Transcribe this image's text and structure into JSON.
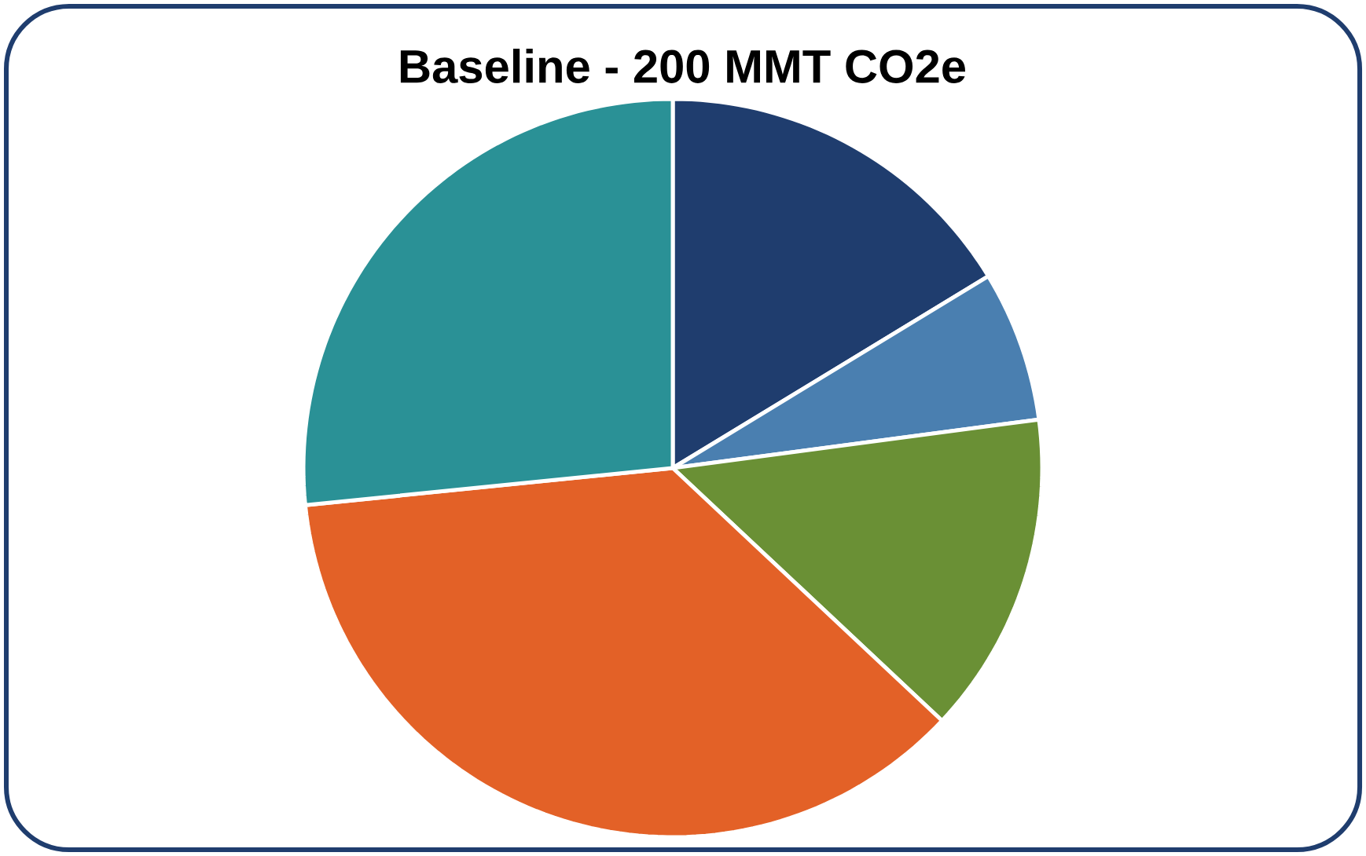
{
  "chart_data": {
    "type": "pie",
    "title": "Baseline - 200 MMT CO2e",
    "categories": [
      null,
      null,
      null,
      null,
      null
    ],
    "values": [
      16.3,
      6.6,
      14.1,
      36.4,
      26.6
    ],
    "colors": [
      "#1f3d6e",
      "#4a7fb0",
      "#6a9035",
      "#e36127",
      "#2a9196"
    ]
  }
}
